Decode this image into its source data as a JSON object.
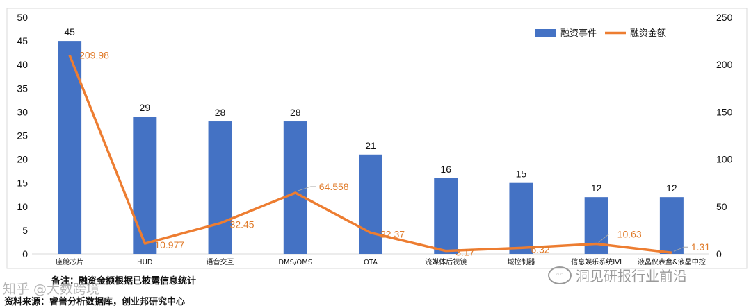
{
  "chart_data": {
    "type": "bar+line",
    "categories": [
      "座舱芯片",
      "HUD",
      "语音交互",
      "DMS/OMS",
      "OTA",
      "流媒体后视镜",
      "域控制器",
      "信息娱乐系统IVI",
      "液晶仪表盘&液晶中控"
    ],
    "series": [
      {
        "name": "融资事件",
        "kind": "bar",
        "axis": "left",
        "color": "#4472c4",
        "values": [
          45,
          29,
          28,
          28,
          21,
          16,
          15,
          12,
          12
        ],
        "labels": [
          "45",
          "29",
          "28",
          "28",
          "21",
          "16",
          "15",
          "12",
          "12"
        ]
      },
      {
        "name": "融资金额",
        "kind": "line",
        "axis": "right",
        "color": "#ed7d31",
        "values": [
          209.98,
          10.977,
          32.45,
          64.558,
          22.37,
          3.17,
          6.32,
          10.63,
          1.31
        ],
        "labels": [
          "209.98",
          "10.977",
          "32.45",
          "64.558",
          "22.37",
          "3.17",
          "6.32",
          "10.63",
          "1.31"
        ]
      }
    ],
    "y_left": {
      "min": 0,
      "max": 50,
      "ticks": [
        "0",
        "5",
        "10",
        "15",
        "20",
        "25",
        "30",
        "35",
        "40",
        "45",
        "50"
      ]
    },
    "y_right": {
      "min": 0,
      "max": 250,
      "ticks": [
        "0",
        "50",
        "100",
        "150",
        "200",
        "250"
      ]
    },
    "legend_position": "top-right",
    "grid": false
  },
  "note": "备注：融资金额根据已披露信息统计",
  "source": "资料来源：睿兽分析数据库，创业邦研究中心",
  "watermark": "洞见研报行业前沿",
  "watermark_icon": "wechat-icon",
  "watermark2": "知乎 @大数跨境"
}
